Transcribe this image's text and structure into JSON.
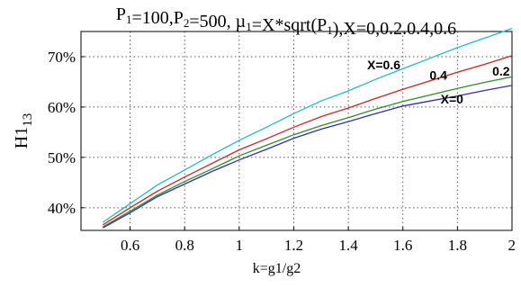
{
  "chart_data": {
    "type": "line",
    "title": {
      "parts": [
        {
          "t": "P"
        },
        {
          "t": "1",
          "sub": true
        },
        {
          "t": "=100,P"
        },
        {
          "t": "2",
          "sub": true
        },
        {
          "t": "=500, µ"
        },
        {
          "t": "1",
          "sub": true
        },
        {
          "t": "=X*sqrt(P"
        },
        {
          "t": "1",
          "sub": true
        },
        {
          "t": "),X=0,0.2.0.4,0.6"
        }
      ]
    },
    "xlabel": "k=g1/g2",
    "ylabel": {
      "base": "H1",
      "sub": "13"
    },
    "xlim": [
      0.42,
      2.0
    ],
    "ylim": [
      0.355,
      0.75
    ],
    "xticks": [
      0.6,
      0.8,
      1,
      1.2,
      1.4,
      1.6,
      1.8,
      2
    ],
    "xtick_labels": [
      "0.6",
      "0.8",
      "1",
      "1.2",
      "1.4",
      "1.6",
      "1.8",
      "2"
    ],
    "yticks": [
      0.4,
      0.5,
      0.6,
      0.7
    ],
    "ytick_labels": [
      "40%",
      "50%",
      "60%",
      "70%"
    ],
    "grid": true,
    "x": [
      0.5,
      0.6,
      0.7,
      0.8,
      0.9,
      1.0,
      1.1,
      1.2,
      1.3,
      1.4,
      1.5,
      1.6,
      1.7,
      1.8,
      1.9,
      2.0
    ],
    "series": [
      {
        "color": "#2f2fb0",
        "values": [
          0.36,
          0.39,
          0.422,
          0.447,
          0.472,
          0.495,
          0.516,
          0.538,
          0.556,
          0.571,
          0.587,
          0.602,
          0.612,
          0.622,
          0.633,
          0.643
        ]
      },
      {
        "color": "#2e8b2e",
        "values": [
          0.362,
          0.393,
          0.425,
          0.452,
          0.477,
          0.503,
          0.524,
          0.545,
          0.563,
          0.579,
          0.596,
          0.611,
          0.624,
          0.637,
          0.649,
          0.66
        ]
      },
      {
        "color": "#d42020",
        "values": [
          0.366,
          0.4,
          0.433,
          0.461,
          0.488,
          0.515,
          0.537,
          0.56,
          0.581,
          0.598,
          0.617,
          0.635,
          0.652,
          0.669,
          0.685,
          0.702
        ]
      },
      {
        "color": "#26b8c4",
        "values": [
          0.371,
          0.408,
          0.445,
          0.475,
          0.505,
          0.534,
          0.56,
          0.587,
          0.612,
          0.632,
          0.655,
          0.676,
          0.697,
          0.718,
          0.737,
          0.756
        ]
      }
    ],
    "annotations": [
      {
        "text": "X=0.6",
        "x": 1.53,
        "y": 0.675
      },
      {
        "text": "0.4",
        "x": 1.73,
        "y": 0.654
      },
      {
        "text": "0.2",
        "x": 1.96,
        "y": 0.662
      },
      {
        "text": "X=0",
        "x": 1.78,
        "y": 0.607
      }
    ]
  }
}
